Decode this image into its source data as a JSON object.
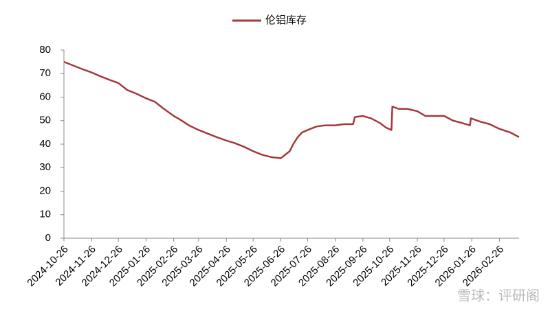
{
  "chart_data": {
    "type": "line",
    "x": [
      "2024-10-26",
      "2024-11-05",
      "2024-11-15",
      "2024-11-26",
      "2024-12-05",
      "2024-12-15",
      "2024-12-26",
      "2025-01-05",
      "2025-01-15",
      "2025-01-26",
      "2025-02-05",
      "2025-02-15",
      "2025-02-26",
      "2025-03-05",
      "2025-03-15",
      "2025-03-26",
      "2025-04-05",
      "2025-04-15",
      "2025-04-26",
      "2025-05-05",
      "2025-05-15",
      "2025-05-26",
      "2025-06-05",
      "2025-06-15",
      "2025-06-26",
      "2025-07-01",
      "2025-07-06",
      "2025-07-10",
      "2025-07-15",
      "2025-07-20",
      "2025-07-26",
      "2025-08-05",
      "2025-08-15",
      "2025-08-26",
      "2025-09-05",
      "2025-09-15",
      "2025-09-17",
      "2025-09-26",
      "2025-10-05",
      "2025-10-15",
      "2025-10-22",
      "2025-10-28",
      "2025-10-29",
      "2025-11-05",
      "2025-11-15",
      "2025-11-26",
      "2025-12-05",
      "2025-12-15",
      "2025-12-26",
      "2026-01-05",
      "2026-01-15",
      "2026-01-24",
      "2026-01-25",
      "2026-02-05",
      "2026-02-15",
      "2026-02-26",
      "2026-03-10",
      "2026-03-20"
    ],
    "series": [
      {
        "name": "伦铝库存",
        "color": "#a5383d",
        "values": [
          75,
          73.5,
          72,
          70.5,
          69,
          67.5,
          66,
          63,
          61.5,
          59.5,
          58,
          55,
          52,
          50.5,
          48,
          46,
          44.5,
          43,
          41.5,
          40.5,
          39,
          37,
          35.5,
          34.5,
          34,
          35.5,
          37,
          40,
          43,
          45,
          46,
          47.5,
          48,
          48,
          48.5,
          48.5,
          51.5,
          52,
          51,
          49,
          47,
          46,
          56,
          55,
          55,
          54,
          52,
          52,
          52,
          50,
          49,
          48,
          51,
          49.5,
          48.5,
          46.5,
          45,
          43
        ]
      }
    ],
    "xlim": [
      "2024-10-26",
      "2026-03-20"
    ],
    "xticks": [
      "2024-10-26",
      "2024-11-26",
      "2024-12-26",
      "2025-01-26",
      "2025-02-26",
      "2025-03-26",
      "2025-04-26",
      "2025-05-26",
      "2025-06-26",
      "2025-07-26",
      "2025-08-26",
      "2025-09-26",
      "2025-10-26",
      "2025-11-26",
      "2025-12-26",
      "2026-01-26",
      "2026-02-26"
    ],
    "ylim": [
      0,
      80
    ],
    "yticks": [
      0,
      10,
      20,
      30,
      40,
      50,
      60,
      70,
      80
    ],
    "legend": "top",
    "watermark": "雪球：评研阁"
  }
}
